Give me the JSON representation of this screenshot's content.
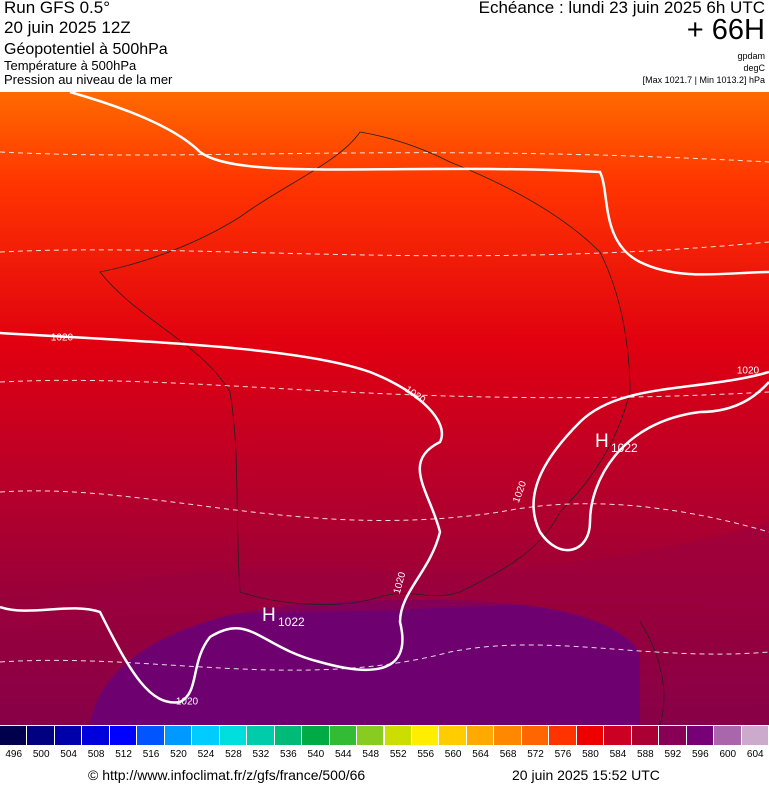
{
  "header": {
    "run": "Run GFS 0.5°",
    "date": "20 juin 2025 12Z",
    "layer1": "Géopotentiel à 500hPa",
    "layer2": "Température à 500hPa",
    "layer3": "Pression au niveau de la mer",
    "echeance": "Echéance : lundi 23 juin 2025 6h UTC",
    "lead": "+ 66H",
    "unit1": "gpdam",
    "unit2": "degC",
    "range": "[Max 1021.7 | Min 1013.2] hPa"
  },
  "map": {
    "isobar_labels": [
      "1020",
      "1020",
      "1020",
      "1020",
      "1020",
      "1020"
    ],
    "highs": [
      {
        "label": "H",
        "value": "1022"
      },
      {
        "label": "H",
        "value": "1022"
      }
    ]
  },
  "colorbar": {
    "ticks": [
      496,
      500,
      504,
      508,
      512,
      516,
      520,
      524,
      528,
      532,
      536,
      540,
      544,
      548,
      552,
      556,
      560,
      564,
      568,
      572,
      576,
      580,
      584,
      588,
      592,
      596,
      600,
      604
    ],
    "colors": [
      "#00004d",
      "#000080",
      "#0000aa",
      "#0000dd",
      "#0000ff",
      "#0055ff",
      "#0099ff",
      "#00ccff",
      "#00dddd",
      "#00ccaa",
      "#00bb77",
      "#00aa44",
      "#33bb33",
      "#88cc22",
      "#ccdd00",
      "#ffee00",
      "#ffcc00",
      "#ffaa00",
      "#ff8800",
      "#ff6600",
      "#ff3300",
      "#ee0000",
      "#cc0022",
      "#aa0033",
      "#880055",
      "#770077",
      "#aa66aa",
      "#ccaacc"
    ]
  },
  "footer": {
    "url": "© http://www.infoclimat.fr/z/gfs/france/500/66",
    "timestamp": "20 juin 2025 15:52 UTC"
  }
}
